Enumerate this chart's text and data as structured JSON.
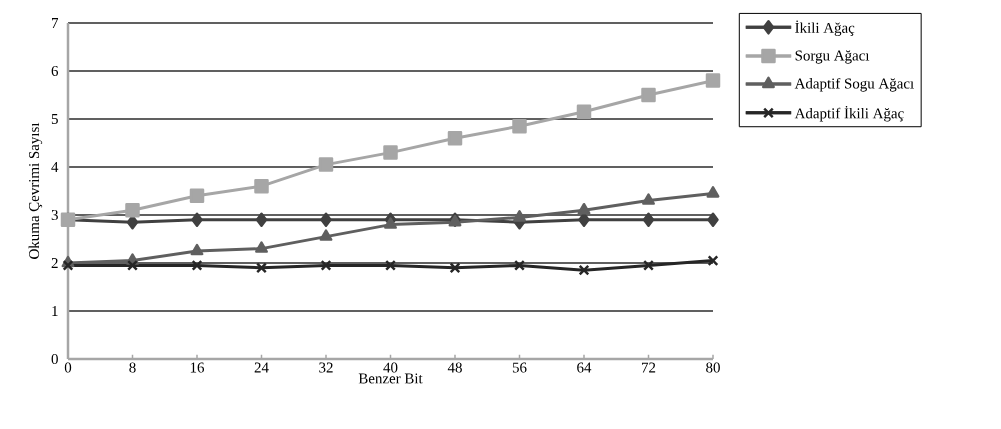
{
  "chart_data": {
    "type": "line",
    "xlabel": "Benzer Bit",
    "ylabel": "Okuma Çevrimi Sayısı",
    "x": [
      0,
      8,
      16,
      24,
      32,
      40,
      48,
      56,
      64,
      72,
      80
    ],
    "series": [
      {
        "name": "İkili Ağaç",
        "color": "#404040",
        "marker": "diamond",
        "values": [
          2.9,
          2.85,
          2.9,
          2.9,
          2.9,
          2.9,
          2.9,
          2.85,
          2.9,
          2.9,
          2.9
        ]
      },
      {
        "name": "Sorgu Ağacı",
        "color": "#a6a6a6",
        "marker": "square",
        "values": [
          2.9,
          3.1,
          3.4,
          3.6,
          4.05,
          4.3,
          4.6,
          4.85,
          5.15,
          5.5,
          5.8
        ]
      },
      {
        "name": "Adaptif Sogu Ağacı",
        "color": "#5f5f5f",
        "marker": "triangle",
        "values": [
          2.0,
          2.05,
          2.25,
          2.3,
          2.55,
          2.8,
          2.85,
          2.95,
          3.1,
          3.3,
          3.45
        ]
      },
      {
        "name": "Adaptif İkili Ağaç",
        "color": "#262626",
        "marker": "cross",
        "values": [
          1.95,
          1.95,
          1.95,
          1.9,
          1.95,
          1.95,
          1.9,
          1.95,
          1.85,
          1.95,
          2.05
        ]
      }
    ],
    "xlim": [
      0,
      80
    ],
    "xticks": [
      0,
      8,
      16,
      24,
      32,
      40,
      48,
      56,
      64,
      72,
      80
    ],
    "ylim": [
      0,
      7
    ],
    "yticks": [
      0,
      1,
      2,
      3,
      4,
      5,
      6,
      7
    ],
    "grid": "y",
    "legend": "top right",
    "line_style": "solid"
  }
}
